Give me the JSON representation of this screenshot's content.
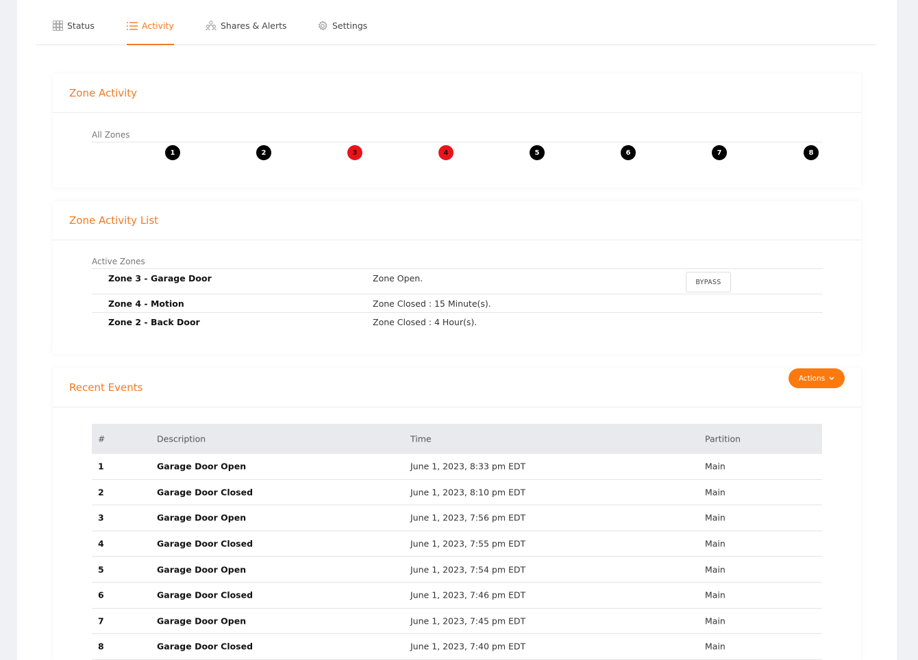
{
  "tabs": [
    {
      "label": "Status",
      "icon": "grid-icon",
      "active": false
    },
    {
      "label": "Activity",
      "icon": "list-icon",
      "active": true
    },
    {
      "label": "Shares & Alerts",
      "icon": "users-icon",
      "active": false
    },
    {
      "label": "Settings",
      "icon": "gear-icon",
      "active": false
    }
  ],
  "zone_activity": {
    "title": "Zone Activity",
    "label": "All Zones",
    "zones": [
      {
        "num": "1",
        "alarm": false
      },
      {
        "num": "2",
        "alarm": false
      },
      {
        "num": "3",
        "alarm": true
      },
      {
        "num": "4",
        "alarm": true
      },
      {
        "num": "5",
        "alarm": false
      },
      {
        "num": "6",
        "alarm": false
      },
      {
        "num": "7",
        "alarm": false
      },
      {
        "num": "8",
        "alarm": false
      }
    ],
    "colors": {
      "normal": "#000000",
      "alarm": "#e8141c"
    }
  },
  "zone_list": {
    "title": "Zone Activity List",
    "label": "Active Zones",
    "rows": [
      {
        "name": "Zone 3 - Garage Door",
        "status": "Zone Open.",
        "action": "BYPASS"
      },
      {
        "name": "Zone 4 - Motion",
        "status": "Zone Closed : 15 Minute(s).",
        "action": ""
      },
      {
        "name": "Zone 2 - Back Door",
        "status": "Zone Closed : 4 Hour(s).",
        "action": ""
      }
    ]
  },
  "recent_events": {
    "title": "Recent Events",
    "actions_label": "Actions",
    "columns": [
      "#",
      "Description",
      "Time",
      "Partition"
    ],
    "rows": [
      {
        "n": "1",
        "desc": "Garage Door Open",
        "time": "June 1, 2023, 8:33 pm EDT",
        "partition": "Main"
      },
      {
        "n": "2",
        "desc": "Garage Door Closed",
        "time": "June 1, 2023, 8:10 pm EDT",
        "partition": "Main"
      },
      {
        "n": "3",
        "desc": "Garage Door Open",
        "time": "June 1, 2023, 7:56 pm EDT",
        "partition": "Main"
      },
      {
        "n": "4",
        "desc": "Garage Door Closed",
        "time": "June 1, 2023, 7:55 pm EDT",
        "partition": "Main"
      },
      {
        "n": "5",
        "desc": "Garage Door Open",
        "time": "June 1, 2023, 7:54 pm EDT",
        "partition": "Main"
      },
      {
        "n": "6",
        "desc": "Garage Door Closed",
        "time": "June 1, 2023, 7:46 pm EDT",
        "partition": "Main"
      },
      {
        "n": "7",
        "desc": "Garage Door Open",
        "time": "June 1, 2023, 7:45 pm EDT",
        "partition": "Main"
      },
      {
        "n": "8",
        "desc": "Garage Door Closed",
        "time": "June 1, 2023, 7:40 pm EDT",
        "partition": "Main"
      }
    ]
  },
  "accent_color": "#f47920"
}
